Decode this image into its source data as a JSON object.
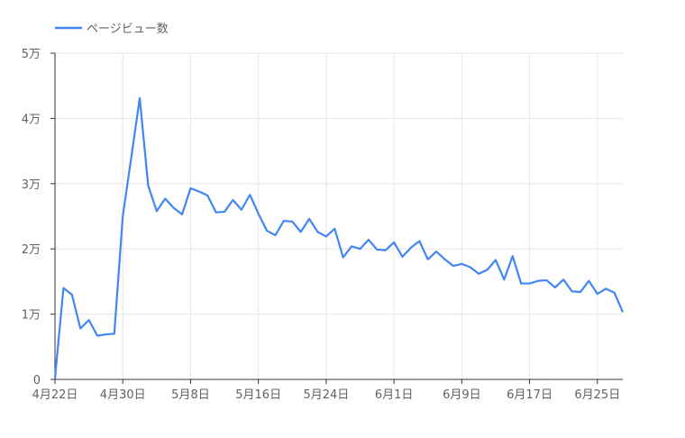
{
  "chart_data": {
    "type": "line",
    "legend_position": "top-left",
    "grid": true,
    "series": [
      {
        "name": "ページビュー数",
        "color": "#4285f4",
        "values": [
          200,
          14000,
          13000,
          7800,
          9100,
          6700,
          6900,
          7000,
          25000,
          34000,
          43100,
          29700,
          25800,
          27700,
          26300,
          25300,
          29300,
          28800,
          28200,
          25600,
          25700,
          27500,
          26000,
          28300,
          25400,
          22800,
          22100,
          24300,
          24200,
          22600,
          24600,
          22600,
          21900,
          23100,
          18700,
          20400,
          20000,
          21400,
          19900,
          19800,
          21000,
          18800,
          20200,
          21200,
          18400,
          19600,
          18400,
          17400,
          17700,
          17200,
          16200,
          16800,
          18300,
          15300,
          18900,
          14700,
          14700,
          15100,
          15200,
          14100,
          15300,
          13500,
          13400,
          15100,
          13100,
          13900,
          13300,
          10300
        ]
      }
    ],
    "x_tick_labels": [
      "4月22日",
      "4月30日",
      "5月8日",
      "5月16日",
      "5月24日",
      "6月1日",
      "6月9日",
      "6月17日",
      "6月25日"
    ],
    "x_tick_every": 8,
    "y_ticks": [
      {
        "value": 0,
        "label": "0"
      },
      {
        "value": 10000,
        "label": "1万"
      },
      {
        "value": 20000,
        "label": "2万"
      },
      {
        "value": 30000,
        "label": "3万"
      },
      {
        "value": 40000,
        "label": "4万"
      },
      {
        "value": 50000,
        "label": "5万"
      }
    ],
    "ylim": [
      0,
      50000
    ]
  }
}
